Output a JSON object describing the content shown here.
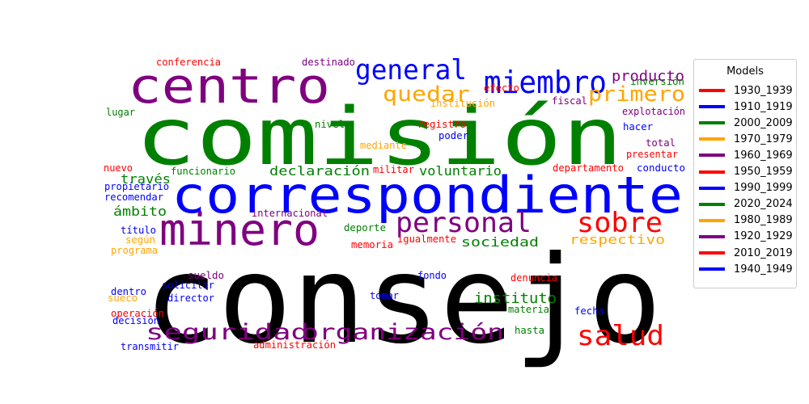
{
  "chart_data": {
    "type": "wordcloud",
    "legend": {
      "title": "Models",
      "placement": "right",
      "entries": [
        {
          "label": "1930_1939",
          "color": "#ff0000"
        },
        {
          "label": "1910_1919",
          "color": "#0000ff"
        },
        {
          "label": "2000_2009",
          "color": "#008000"
        },
        {
          "label": "1970_1979",
          "color": "#ffa500"
        },
        {
          "label": "1960_1969",
          "color": "#800080"
        },
        {
          "label": "1950_1959",
          "color": "#ff0000"
        },
        {
          "label": "1990_1999",
          "color": "#0000ff"
        },
        {
          "label": "2020_2024",
          "color": "#008000"
        },
        {
          "label": "1980_1989",
          "color": "#ffa500"
        },
        {
          "label": "1920_1929",
          "color": "#800080"
        },
        {
          "label": "2010_2019",
          "color": "#ff0000"
        },
        {
          "label": "1940_1949",
          "color": "#0000ff"
        }
      ]
    },
    "words": [
      {
        "text": "consejo",
        "color": "#000000"
      },
      {
        "text": "comisión",
        "color": "#008000"
      },
      {
        "text": "correspondiente",
        "color": "#0000ff"
      },
      {
        "text": "centro",
        "color": "#800080"
      },
      {
        "text": "minero",
        "color": "#800080"
      },
      {
        "text": "miembro",
        "color": "#0000ff"
      },
      {
        "text": "general",
        "color": "#0000ff"
      },
      {
        "text": "personal",
        "color": "#800080"
      },
      {
        "text": "sobre",
        "color": "#ff0000"
      },
      {
        "text": "salud",
        "color": "#ff0000"
      },
      {
        "text": "seguridad",
        "color": "#800080"
      },
      {
        "text": "organización",
        "color": "#800080"
      },
      {
        "text": "primero",
        "color": "#ffa500"
      },
      {
        "text": "quedar",
        "color": "#ffa500"
      },
      {
        "text": "producto",
        "color": "#800080"
      },
      {
        "text": "instituto",
        "color": "#008000"
      },
      {
        "text": "respectivo",
        "color": "#ffa500"
      },
      {
        "text": "sociedad",
        "color": "#008000"
      },
      {
        "text": "declaración",
        "color": "#008000"
      },
      {
        "text": "voluntario",
        "color": "#008000"
      },
      {
        "text": "ámbito",
        "color": "#008000"
      },
      {
        "text": "través",
        "color": "#008000"
      },
      {
        "text": "conferencia",
        "color": "#ff0000"
      },
      {
        "text": "destinado",
        "color": "#800080"
      },
      {
        "text": "efecto",
        "color": "#ff0000"
      },
      {
        "text": "inversión",
        "color": "#008000"
      },
      {
        "text": "institución",
        "color": "#ffa500"
      },
      {
        "text": "fiscal",
        "color": "#800080"
      },
      {
        "text": "explotación",
        "color": "#800080"
      },
      {
        "text": "lugar",
        "color": "#008000"
      },
      {
        "text": "nivel",
        "color": "#008000"
      },
      {
        "text": "registro",
        "color": "#ff0000"
      },
      {
        "text": "poder",
        "color": "#0000ff"
      },
      {
        "text": "hacer",
        "color": "#0000ff"
      },
      {
        "text": "total",
        "color": "#800080"
      },
      {
        "text": "mediante",
        "color": "#ffa500"
      },
      {
        "text": "presentar",
        "color": "#ff0000"
      },
      {
        "text": "nuevo",
        "color": "#ff0000"
      },
      {
        "text": "funcionario",
        "color": "#008000"
      },
      {
        "text": "militar",
        "color": "#ff0000"
      },
      {
        "text": "departamento",
        "color": "#ff0000"
      },
      {
        "text": "conducto",
        "color": "#0000ff"
      },
      {
        "text": "propietario",
        "color": "#0000ff"
      },
      {
        "text": "recomendar",
        "color": "#0000ff"
      },
      {
        "text": "internacional",
        "color": "#800080"
      },
      {
        "text": "título",
        "color": "#0000ff"
      },
      {
        "text": "según",
        "color": "#ffa500"
      },
      {
        "text": "programa",
        "color": "#ffa500"
      },
      {
        "text": "deporte",
        "color": "#008000"
      },
      {
        "text": "memoria",
        "color": "#ff0000"
      },
      {
        "text": "igualmente",
        "color": "#ff0000"
      },
      {
        "text": "sueldo",
        "color": "#800080"
      },
      {
        "text": "solicitar",
        "color": "#0000ff"
      },
      {
        "text": "fondo",
        "color": "#0000ff"
      },
      {
        "text": "denuncia",
        "color": "#ff0000"
      },
      {
        "text": "dentro",
        "color": "#0000ff"
      },
      {
        "text": "sueco",
        "color": "#ffa500"
      },
      {
        "text": "director",
        "color": "#0000ff"
      },
      {
        "text": "tomar",
        "color": "#0000ff"
      },
      {
        "text": "operación",
        "color": "#ff0000"
      },
      {
        "text": "decisión",
        "color": "#0000ff"
      },
      {
        "text": "materia",
        "color": "#008000"
      },
      {
        "text": "fecha",
        "color": "#0000ff"
      },
      {
        "text": "hasta",
        "color": "#008000"
      },
      {
        "text": "transmitir",
        "color": "#0000ff"
      },
      {
        "text": "administración",
        "color": "#ff0000"
      }
    ]
  }
}
